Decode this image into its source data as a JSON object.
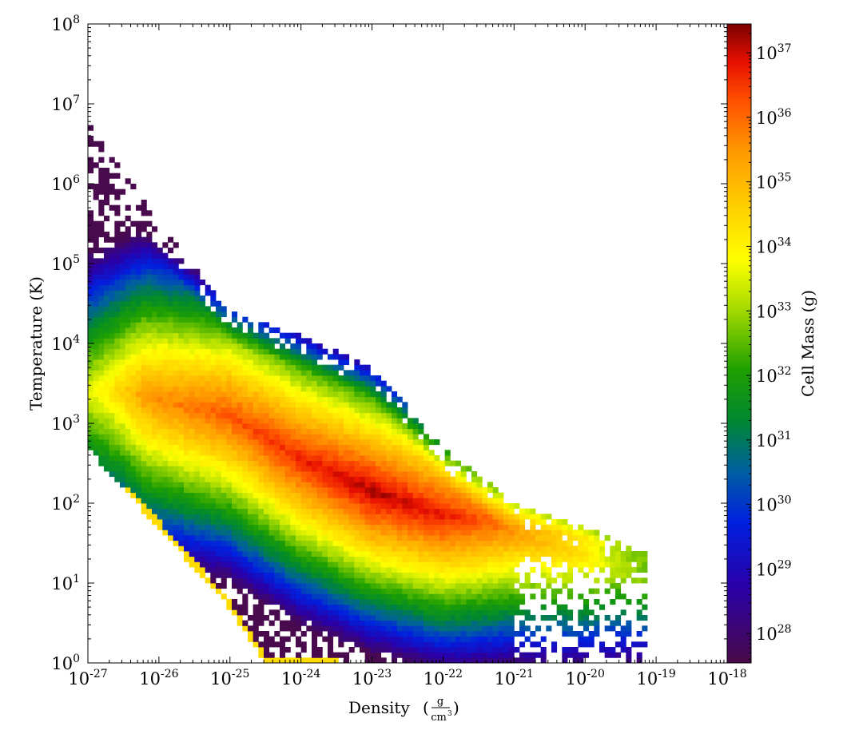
{
  "chart_data": {
    "type": "heatmap",
    "title": "",
    "xlabel": "Density",
    "xlabel_unit_num": "g",
    "xlabel_unit_den": "cm",
    "xlabel_unit_den_exp": "3",
    "ylabel": "Temperature  (K)",
    "colorbar_label": "Cell Mass  (g)",
    "x_scale": "log",
    "y_scale": "log",
    "color_scale": "log",
    "xlim": [
      1e-27,
      1e-18
    ],
    "ylim": [
      1,
      100000000
    ],
    "clim": [
      3.5e+27,
      2.8e+37
    ],
    "x_tick_labels": [
      {
        "base": "10",
        "exp": "-27",
        "value_log10": -27
      },
      {
        "base": "10",
        "exp": "-26",
        "value_log10": -26
      },
      {
        "base": "10",
        "exp": "-25",
        "value_log10": -25
      },
      {
        "base": "10",
        "exp": "-24",
        "value_log10": -24
      },
      {
        "base": "10",
        "exp": "-23",
        "value_log10": -23
      },
      {
        "base": "10",
        "exp": "-22",
        "value_log10": -22
      },
      {
        "base": "10",
        "exp": "-21",
        "value_log10": -21
      },
      {
        "base": "10",
        "exp": "-20",
        "value_log10": -20
      },
      {
        "base": "10",
        "exp": "-19",
        "value_log10": -19
      },
      {
        "base": "10",
        "exp": "-18",
        "value_log10": -18
      }
    ],
    "y_tick_labels": [
      {
        "base": "10",
        "exp": "0",
        "value_log10": 0
      },
      {
        "base": "10",
        "exp": "1",
        "value_log10": 1
      },
      {
        "base": "10",
        "exp": "2",
        "value_log10": 2
      },
      {
        "base": "10",
        "exp": "3",
        "value_log10": 3
      },
      {
        "base": "10",
        "exp": "4",
        "value_log10": 4
      },
      {
        "base": "10",
        "exp": "5",
        "value_log10": 5
      },
      {
        "base": "10",
        "exp": "6",
        "value_log10": 6
      },
      {
        "base": "10",
        "exp": "7",
        "value_log10": 7
      },
      {
        "base": "10",
        "exp": "8",
        "value_log10": 8
      }
    ],
    "colorbar_tick_labels": [
      {
        "base": "10",
        "exp": "28",
        "value_log10": 28
      },
      {
        "base": "10",
        "exp": "29",
        "value_log10": 29
      },
      {
        "base": "10",
        "exp": "30",
        "value_log10": 30
      },
      {
        "base": "10",
        "exp": "31",
        "value_log10": 31
      },
      {
        "base": "10",
        "exp": "32",
        "value_log10": 32
      },
      {
        "base": "10",
        "exp": "33",
        "value_log10": 33
      },
      {
        "base": "10",
        "exp": "34",
        "value_log10": 34
      },
      {
        "base": "10",
        "exp": "35",
        "value_log10": 35
      },
      {
        "base": "10",
        "exp": "36",
        "value_log10": 36
      },
      {
        "base": "10",
        "exp": "37",
        "value_log10": 37
      }
    ],
    "colormap": {
      "name": "spectral",
      "stops": [
        {
          "pos": 0.0,
          "color": "#4a0a4a"
        },
        {
          "pos": 0.12,
          "color": "#2a00a8"
        },
        {
          "pos": 0.22,
          "color": "#0020e0"
        },
        {
          "pos": 0.3,
          "color": "#0060a0"
        },
        {
          "pos": 0.38,
          "color": "#008830"
        },
        {
          "pos": 0.46,
          "color": "#20a000"
        },
        {
          "pos": 0.55,
          "color": "#a0d800"
        },
        {
          "pos": 0.63,
          "color": "#ffff00"
        },
        {
          "pos": 0.72,
          "color": "#ffcc00"
        },
        {
          "pos": 0.8,
          "color": "#ff9900"
        },
        {
          "pos": 0.88,
          "color": "#ff5000"
        },
        {
          "pos": 0.94,
          "color": "#e81000"
        },
        {
          "pos": 1.0,
          "color": "#7a0000"
        }
      ]
    },
    "series": [
      {
        "name": "",
        "ridge": [
          [
            -26.5,
            3.4
          ],
          [
            -25.0,
            3.1
          ],
          [
            -24.0,
            2.55
          ],
          [
            -23.0,
            2.15
          ],
          [
            -22.0,
            1.85
          ],
          [
            -21.0,
            1.72
          ],
          [
            -20.0,
            1.58
          ],
          [
            -19.6,
            1.5
          ]
        ],
        "ridge_log_mass": [
          35.3,
          36.2,
          36.7,
          37.2,
          36.8,
          35.8,
          35.2,
          34.6
        ]
      }
    ],
    "regions": [
      {
        "name": "",
        "description_points_log10": [
          [
            -27.0,
            6.8
          ],
          [
            -26.0,
            5.5
          ],
          [
            -25.0,
            4.4
          ],
          [
            -24.0,
            4.1
          ],
          [
            -23.0,
            3.7
          ],
          [
            -22.0,
            2.7
          ],
          [
            -21.0,
            2.0
          ],
          [
            -20.0,
            1.7
          ],
          [
            -19.2,
            1.4
          ]
        ]
      },
      {
        "name": "",
        "description_points_log10": [
          [
            -27.0,
            2.7
          ],
          [
            -26.0,
            1.7
          ],
          [
            -25.0,
            0.7
          ],
          [
            -24.5,
            0.0
          ]
        ]
      }
    ]
  }
}
